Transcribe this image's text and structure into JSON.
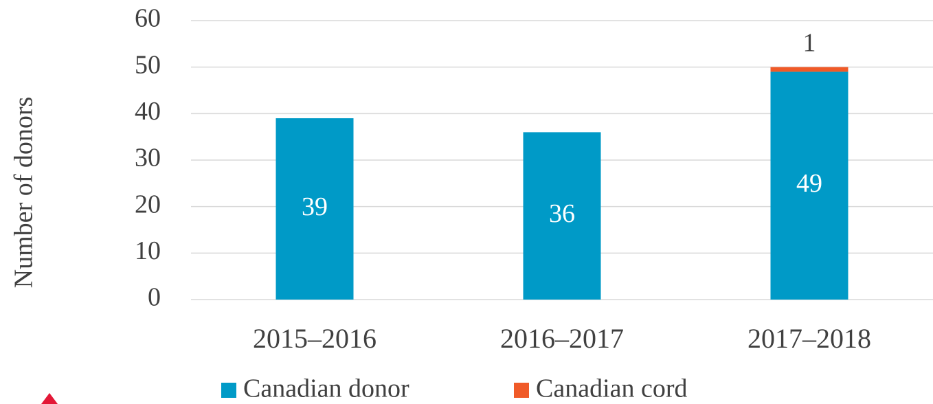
{
  "chart_data": {
    "type": "stacked_bar",
    "y_axis_label": "Number of donors",
    "categories": [
      "2015–2016",
      "2016–2017",
      "2017–2018"
    ],
    "series": [
      {
        "name": "Canadian donor",
        "color": "#009ac7",
        "values": [
          39,
          36,
          49
        ],
        "label_color": "#ffffff"
      },
      {
        "name": "Canadian cord",
        "color": "#f05a28",
        "values": [
          null,
          null,
          1
        ],
        "label_color": "#404040"
      }
    ],
    "ylim": [
      0,
      60
    ],
    "yticks": [
      0,
      10,
      20,
      30,
      40,
      50,
      60
    ],
    "grid": true,
    "legend": "bottom"
  }
}
